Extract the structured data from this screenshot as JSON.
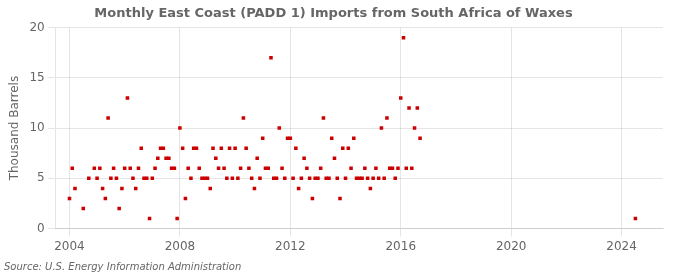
{
  "chart_data": {
    "type": "scatter",
    "title": "Monthly East Coast (PADD 1) Imports from South Africa of Waxes",
    "ylabel": "Thousand Barrels",
    "annotation": "Source: U.S. Energy Information Administration",
    "color": "#cc0000",
    "marker": "square",
    "grid": true,
    "xlim": [
      2003.5,
      2025.5
    ],
    "ylim": [
      0,
      20
    ],
    "xticks": [
      2004,
      2008,
      2012,
      2016,
      2020,
      2024
    ],
    "yticks": [
      0,
      5,
      10,
      15,
      20
    ],
    "x": [
      2004.0,
      2004.1,
      2004.2,
      2004.5,
      2004.7,
      2004.9,
      2005.0,
      2005.1,
      2005.2,
      2005.3,
      2005.4,
      2005.5,
      2005.6,
      2005.7,
      2005.8,
      2005.9,
      2006.0,
      2006.1,
      2006.2,
      2006.3,
      2006.4,
      2006.5,
      2006.6,
      2006.7,
      2006.8,
      2006.9,
      2007.0,
      2007.1,
      2007.2,
      2007.3,
      2007.4,
      2007.5,
      2007.6,
      2007.7,
      2007.8,
      2007.9,
      2008.0,
      2008.1,
      2008.2,
      2008.3,
      2008.4,
      2008.5,
      2008.6,
      2008.7,
      2008.8,
      2008.9,
      2009.0,
      2009.1,
      2009.2,
      2009.3,
      2009.4,
      2009.5,
      2009.6,
      2009.7,
      2009.8,
      2009.9,
      2010.0,
      2010.1,
      2010.2,
      2010.3,
      2010.4,
      2010.5,
      2010.6,
      2010.7,
      2010.8,
      2010.9,
      2011.0,
      2011.1,
      2011.2,
      2011.3,
      2011.4,
      2011.5,
      2011.6,
      2011.7,
      2011.8,
      2011.9,
      2012.0,
      2012.1,
      2012.2,
      2012.3,
      2012.4,
      2012.5,
      2012.6,
      2012.7,
      2012.8,
      2012.9,
      2013.0,
      2013.1,
      2013.2,
      2013.3,
      2013.4,
      2013.5,
      2013.6,
      2013.7,
      2013.8,
      2013.9,
      2014.0,
      2014.1,
      2014.2,
      2014.3,
      2014.4,
      2014.5,
      2014.6,
      2014.7,
      2014.8,
      2014.9,
      2015.0,
      2015.1,
      2015.2,
      2015.3,
      2015.4,
      2015.5,
      2015.6,
      2015.7,
      2015.8,
      2015.9,
      2016.0,
      2016.1,
      2016.2,
      2016.3,
      2016.4,
      2016.5,
      2016.6,
      2016.7,
      2024.5
    ],
    "values": [
      3,
      6,
      4,
      2,
      5,
      6,
      5,
      6,
      4,
      3,
      11,
      5,
      6,
      5,
      2,
      4,
      6,
      13,
      6,
      5,
      4,
      6,
      8,
      5,
      5,
      1,
      5,
      6,
      7,
      8,
      8,
      7,
      7,
      6,
      6,
      1,
      10,
      8,
      3,
      6,
      5,
      8,
      8,
      6,
      5,
      5,
      5,
      4,
      8,
      7,
      6,
      8,
      6,
      5,
      8,
      5,
      8,
      5,
      6,
      11,
      8,
      6,
      5,
      4,
      7,
      5,
      9,
      6,
      6,
      17,
      5,
      5,
      10,
      6,
      5,
      9,
      9,
      5,
      8,
      4,
      5,
      7,
      6,
      5,
      3,
      5,
      5,
      6,
      11,
      5,
      5,
      9,
      7,
      5,
      3,
      8,
      5,
      8,
      6,
      9,
      5,
      5,
      5,
      6,
      5,
      4,
      5,
      6,
      5,
      10,
      5,
      11,
      6,
      6,
      5,
      6,
      13,
      19,
      6,
      12,
      6,
      10,
      12,
      9,
      1
    ]
  }
}
